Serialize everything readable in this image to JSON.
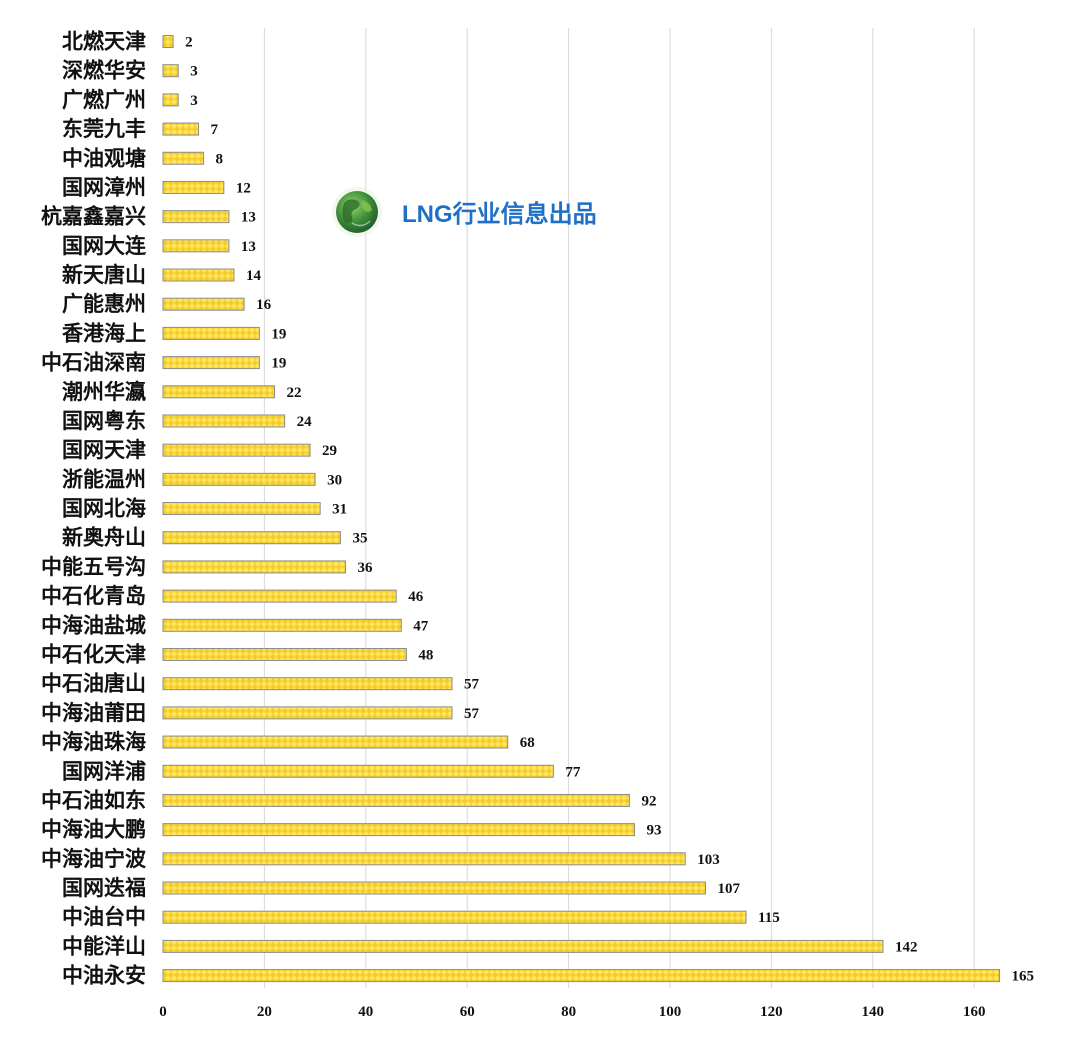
{
  "chart_data": {
    "type": "bar",
    "orientation": "horizontal",
    "categories": [
      "北燃天津",
      "深燃华安",
      "广燃广州",
      "东莞九丰",
      "中油观塘",
      "国网漳州",
      "杭嘉鑫嘉兴",
      "国网大连",
      "新天唐山",
      "广能惠州",
      "香港海上",
      "中石油深南",
      "潮州华瀛",
      "国网粤东",
      "国网天津",
      "浙能温州",
      "国网北海",
      "新奥舟山",
      "中能五号沟",
      "中石化青岛",
      "中海油盐城",
      "中石化天津",
      "中石油唐山",
      "中海油莆田",
      "中海油珠海",
      "国网洋浦",
      "中石油如东",
      "中海油大鹏",
      "中海油宁波",
      "国网迭福",
      "中油台中",
      "中能洋山",
      "中油永安"
    ],
    "values": [
      2,
      3,
      3,
      7,
      8,
      12,
      13,
      13,
      14,
      16,
      19,
      19,
      22,
      24,
      29,
      30,
      31,
      35,
      36,
      46,
      47,
      48,
      57,
      57,
      68,
      77,
      92,
      93,
      103,
      107,
      115,
      142,
      165
    ],
    "xlim": [
      0,
      160
    ],
    "x_ticks": [
      0,
      20,
      40,
      60,
      80,
      100,
      120,
      140,
      160
    ],
    "grid": "vertical",
    "bar_color": "#FFE45C",
    "bar_pattern_color": "#D9A800",
    "bar_edge_color": "#8C8C8C",
    "title": "",
    "xlabel": "",
    "ylabel": ""
  },
  "watermark": {
    "text": "LNG行业信息出品",
    "color": "#1E6FC6",
    "icon": "globe-logo-icon"
  }
}
